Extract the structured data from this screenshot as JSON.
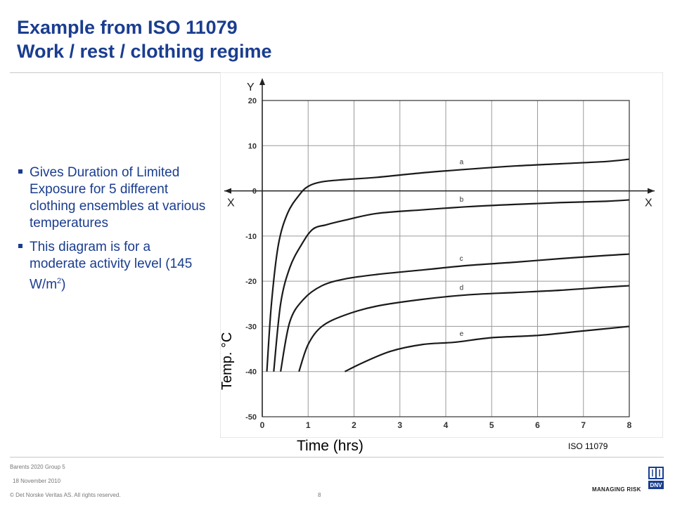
{
  "title": {
    "line1": "Example from ISO 11079",
    "line2": "Work / rest / clothing regime"
  },
  "bullets": [
    {
      "text": "Gives Duration of Limited Exposure for 5 different clothing ensembles at various temperatures"
    },
    {
      "text_before": "This diagram is for a moderate activity level (145 W/m",
      "sup": "2",
      "text_after": ")"
    }
  ],
  "chart_data": {
    "type": "line",
    "y_axis_letter": "Y",
    "x_axis_letter": "X",
    "x_ticks": [
      "0",
      "1",
      "2",
      "3",
      "4",
      "5",
      "6",
      "7",
      "8"
    ],
    "y_ticks": [
      "20",
      "10",
      "0",
      "-10",
      "-20",
      "-30",
      "-40",
      "-50"
    ],
    "xlim": [
      0,
      8
    ],
    "ylim": [
      -50,
      20
    ],
    "grid": true,
    "series": [
      {
        "name": "a",
        "x": [
          0.1,
          0.2,
          0.35,
          0.55,
          0.8,
          1.0,
          1.3,
          1.8,
          2.5,
          3.5,
          4.5,
          5.5,
          6.5,
          7.5,
          8.0
        ],
        "y": [
          -40,
          -25,
          -12,
          -5,
          -1,
          1,
          2,
          2.5,
          3,
          4,
          4.8,
          5.5,
          6,
          6.5,
          7
        ]
      },
      {
        "name": "b",
        "x": [
          0.25,
          0.4,
          0.6,
          0.85,
          1.1,
          1.4,
          1.8,
          2.5,
          3.5,
          4.5,
          5.5,
          6.5,
          7.5,
          8.0
        ],
        "y": [
          -40,
          -25,
          -17,
          -12,
          -8.5,
          -7.5,
          -6.5,
          -5,
          -4.2,
          -3.5,
          -3,
          -2.6,
          -2.3,
          -2
        ]
      },
      {
        "name": "c",
        "x": [
          0.4,
          0.6,
          0.9,
          1.3,
          1.8,
          2.5,
          3.5,
          4.5,
          5.5,
          6.5,
          7.5,
          8.0
        ],
        "y": [
          -40,
          -29,
          -24,
          -21,
          -19.5,
          -18.5,
          -17.5,
          -16.5,
          -15.8,
          -15,
          -14.3,
          -14
        ]
      },
      {
        "name": "d",
        "x": [
          0.8,
          1.0,
          1.3,
          1.8,
          2.5,
          3.5,
          4.5,
          5.5,
          6.5,
          7.5,
          8.0
        ],
        "y": [
          -40,
          -34,
          -30,
          -27.5,
          -25.5,
          -24,
          -23,
          -22.5,
          -22,
          -21.3,
          -21
        ]
      },
      {
        "name": "e",
        "x": [
          1.8,
          2.2,
          2.8,
          3.5,
          4.2,
          5.0,
          6.0,
          7.0,
          8.0
        ],
        "y": [
          -40,
          -38,
          -35.5,
          -34,
          -33.5,
          -32.5,
          -32,
          -31,
          -30
        ]
      }
    ],
    "ylabel": "Temp. °C",
    "xlabel": "Time (hrs)",
    "source": "ISO 11079",
    "colors": {
      "line": "#1a1a1a",
      "grid": "#9a9a9a"
    }
  },
  "footer": {
    "group": "Barents 2020 Group  5",
    "date": "18 November 2010",
    "copyright": "© Det Norske Veritas AS. All rights reserved.",
    "page": "8",
    "logo_text": "MANAGING RISK",
    "logo_brand": "DNV"
  }
}
